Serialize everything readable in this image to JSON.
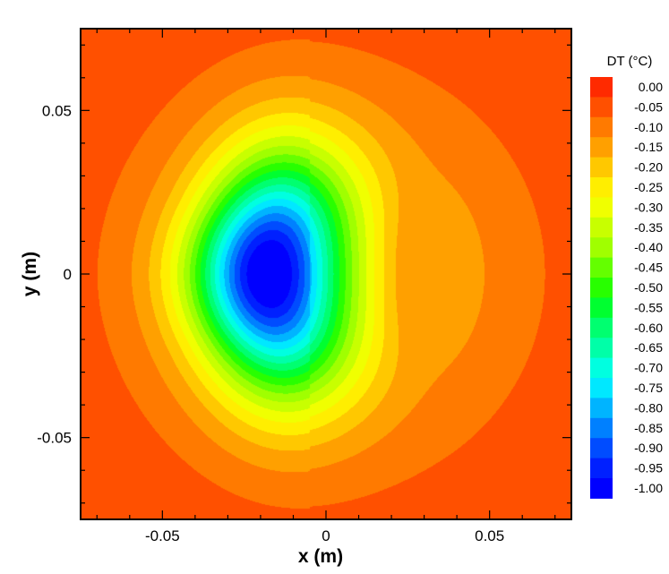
{
  "chart_data": {
    "type": "contour",
    "xlabel": "x (m)",
    "ylabel": "y (m)",
    "xlim": [
      -0.075,
      0.075
    ],
    "ylim": [
      -0.075,
      0.075
    ],
    "xticks": [
      -0.05,
      0,
      0.05
    ],
    "yticks": [
      -0.05,
      0,
      0.05
    ],
    "xtick_labels": [
      "-0.05",
      "0",
      "0.05"
    ],
    "ytick_labels": [
      "-0.05",
      "0",
      "0.05"
    ],
    "grid": false,
    "legend": {
      "title": "DT (°C)",
      "placement": "right",
      "levels": [
        0.0,
        -0.05,
        -0.1,
        -0.15,
        -0.2,
        -0.25,
        -0.3,
        -0.35,
        -0.4,
        -0.45,
        -0.5,
        -0.55,
        -0.6,
        -0.65,
        -0.7,
        -0.75,
        -0.8,
        -0.85,
        -0.9,
        -0.95,
        -1.0
      ],
      "labels": [
        "0.00",
        "-0.05",
        "-0.10",
        "-0.15",
        "-0.20",
        "-0.25",
        "-0.30",
        "-0.35",
        "-0.40",
        "-0.45",
        "-0.50",
        "-0.55",
        "-0.60",
        "-0.65",
        "-0.70",
        "-0.75",
        "-0.80",
        "-0.85",
        "-0.90",
        "-0.95",
        "-1.00"
      ],
      "colors": [
        "#ff2a00",
        "#ff5000",
        "#ff7a00",
        "#ffa000",
        "#ffc800",
        "#ffee00",
        "#f0ff00",
        "#c8ff00",
        "#a0ff00",
        "#64ff00",
        "#28ff00",
        "#00ff30",
        "#00ff70",
        "#00ffa8",
        "#00ffe0",
        "#00e8ff",
        "#00b4ff",
        "#0080ff",
        "#004cff",
        "#0020ff",
        "#0000ff"
      ]
    },
    "features": {
      "cold_core": {
        "x": -0.018,
        "y": 0.0,
        "dt": -1.0
      },
      "warm_lobe": {
        "x": 0.025,
        "y": 0.0,
        "dt": -0.15
      },
      "corner_min": -0.05
    }
  }
}
